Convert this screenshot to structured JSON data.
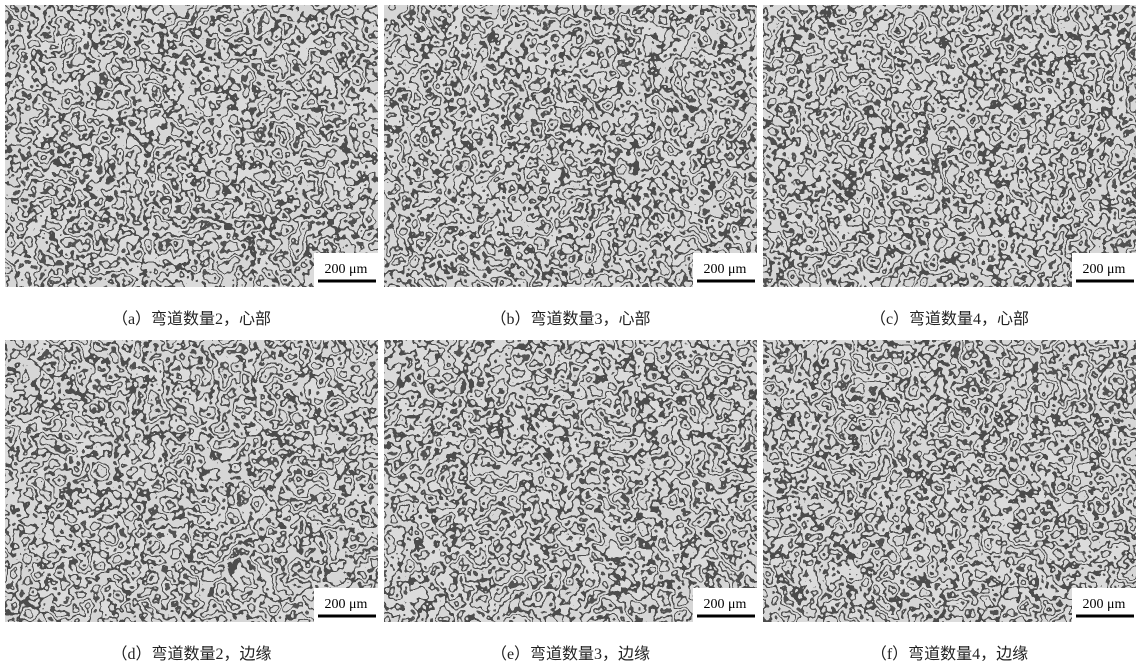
{
  "panels": [
    {
      "caption": "（a）弯道数量2，心部",
      "scale_bar": "200 μm"
    },
    {
      "caption": "（b）弯道数量3，心部",
      "scale_bar": "200 μm"
    },
    {
      "caption": "（c）弯道数量4，心部",
      "scale_bar": "200 μm"
    },
    {
      "caption": "（d）弯道数量2，边缘",
      "scale_bar": "200 μm"
    },
    {
      "caption": "（e）弯道数量3，边缘",
      "scale_bar": "200 μm"
    },
    {
      "caption": "（f）弯道数量4，边缘",
      "scale_bar": "200 μm"
    }
  ]
}
